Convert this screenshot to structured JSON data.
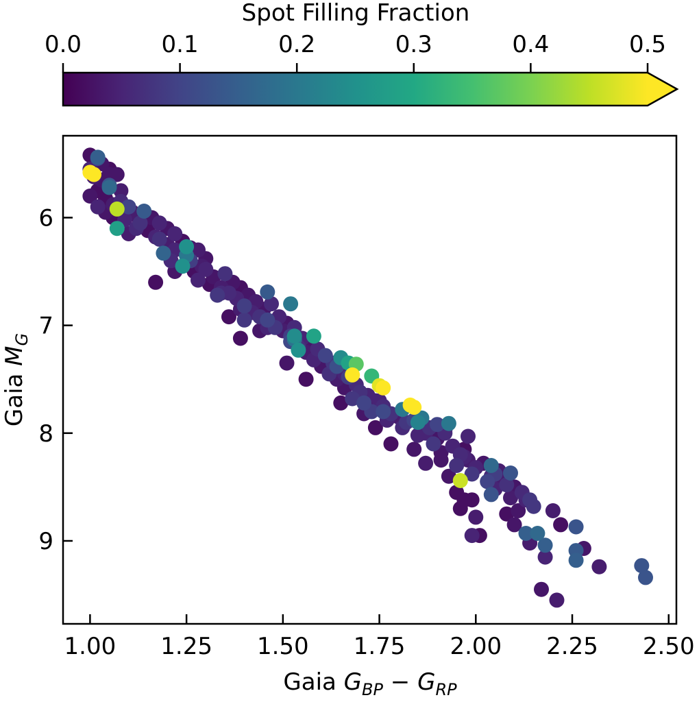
{
  "chart_data": {
    "type": "scatter",
    "xlabel": "Gaia G_BP − G_RP",
    "ylabel": "Gaia M_G",
    "xlim": [
      0.93,
      2.52
    ],
    "ylim": [
      9.77,
      5.24
    ],
    "xticks": [
      1.0,
      1.25,
      1.5,
      1.75,
      2.0,
      2.25,
      2.5
    ],
    "xtick_labels": [
      "1.00",
      "1.25",
      "1.50",
      "1.75",
      "2.00",
      "2.25",
      "2.50"
    ],
    "yticks": [
      6,
      7,
      8,
      9
    ],
    "ytick_labels": [
      "6",
      "7",
      "8",
      "9"
    ],
    "grid": false,
    "colorbar": {
      "label": "Spot Filling Fraction",
      "range": [
        0.0,
        0.5
      ],
      "ticks": [
        0.0,
        0.1,
        0.2,
        0.3,
        0.4,
        0.5
      ],
      "tick_labels": [
        "0.0",
        "0.1",
        "0.2",
        "0.3",
        "0.4",
        "0.5"
      ],
      "extend": "max",
      "colormap": "viridis"
    },
    "points": [
      [
        1.0,
        5.42,
        0.02
      ],
      [
        1.02,
        5.45,
        0.12
      ],
      [
        1.03,
        5.5,
        0.03
      ],
      [
        1.05,
        5.55,
        0.02
      ],
      [
        1.07,
        5.6,
        0.03
      ],
      [
        1.0,
        5.55,
        0.05
      ],
      [
        1.01,
        5.62,
        0.04
      ],
      [
        1.03,
        5.65,
        0.03
      ],
      [
        1.05,
        5.7,
        0.13
      ],
      [
        1.02,
        5.75,
        0.02
      ],
      [
        1.0,
        5.8,
        0.03
      ],
      [
        1.04,
        5.82,
        0.02
      ],
      [
        1.06,
        5.88,
        0.04
      ],
      [
        1.08,
        5.85,
        0.06
      ],
      [
        1.1,
        5.92,
        0.03
      ],
      [
        1.02,
        5.9,
        0.05
      ],
      [
        1.04,
        5.95,
        0.03
      ],
      [
        1.06,
        6.0,
        0.02
      ],
      [
        1.09,
        6.02,
        0.05
      ],
      [
        1.12,
        5.98,
        0.04
      ],
      [
        1.14,
        6.02,
        0.02
      ],
      [
        1.16,
        6.0,
        0.03
      ],
      [
        1.18,
        6.05,
        0.05
      ],
      [
        1.12,
        6.1,
        0.06
      ],
      [
        1.1,
        6.15,
        0.04
      ],
      [
        1.15,
        6.12,
        0.02
      ],
      [
        1.2,
        6.1,
        0.03
      ],
      [
        1.22,
        6.15,
        0.05
      ],
      [
        1.18,
        6.2,
        0.07
      ],
      [
        1.2,
        6.25,
        0.04
      ],
      [
        1.24,
        6.22,
        0.02
      ],
      [
        1.26,
        6.28,
        0.03
      ],
      [
        1.22,
        6.3,
        0.05
      ],
      [
        1.25,
        6.35,
        0.02
      ],
      [
        1.28,
        6.3,
        0.04
      ],
      [
        1.3,
        6.38,
        0.03
      ],
      [
        1.21,
        6.4,
        0.06
      ],
      [
        1.24,
        6.45,
        0.04
      ],
      [
        1.27,
        6.5,
        0.02
      ],
      [
        1.3,
        6.48,
        0.05
      ],
      [
        1.32,
        6.55,
        0.03
      ],
      [
        1.35,
        6.52,
        0.07
      ],
      [
        1.28,
        6.58,
        0.05
      ],
      [
        1.31,
        6.62,
        0.02
      ],
      [
        1.34,
        6.65,
        0.04
      ],
      [
        1.37,
        6.6,
        0.03
      ],
      [
        1.39,
        6.65,
        0.02
      ],
      [
        1.36,
        6.7,
        0.06
      ],
      [
        1.33,
        6.72,
        0.08
      ],
      [
        1.38,
        6.75,
        0.05
      ],
      [
        1.41,
        6.72,
        0.03
      ],
      [
        1.43,
        6.78,
        0.04
      ],
      [
        1.4,
        6.82,
        0.09
      ],
      [
        1.42,
        6.88,
        0.05
      ],
      [
        1.45,
        6.85,
        0.03
      ],
      [
        1.47,
        6.8,
        0.06
      ],
      [
        1.44,
        6.92,
        0.07
      ],
      [
        1.46,
        6.95,
        0.1
      ],
      [
        1.49,
        6.92,
        0.05
      ],
      [
        1.51,
        6.98,
        0.03
      ],
      [
        1.48,
        7.02,
        0.08
      ],
      [
        1.5,
        7.05,
        0.04
      ],
      [
        1.53,
        7.02,
        0.06
      ],
      [
        1.52,
        7.1,
        0.09
      ],
      [
        1.55,
        7.12,
        0.05
      ],
      [
        1.57,
        7.15,
        0.03
      ],
      [
        1.54,
        7.2,
        0.07
      ],
      [
        1.56,
        7.25,
        0.04
      ],
      [
        1.59,
        7.22,
        0.06
      ],
      [
        1.61,
        7.28,
        0.1
      ],
      [
        1.58,
        7.32,
        0.05
      ],
      [
        1.6,
        7.38,
        0.03
      ],
      [
        1.63,
        7.35,
        0.08
      ],
      [
        1.65,
        7.4,
        0.05
      ],
      [
        1.62,
        7.45,
        0.07
      ],
      [
        1.64,
        7.5,
        0.04
      ],
      [
        1.67,
        7.48,
        0.09
      ],
      [
        1.69,
        7.55,
        0.06
      ],
      [
        1.66,
        7.58,
        0.03
      ],
      [
        1.7,
        7.62,
        0.07
      ],
      [
        1.72,
        7.65,
        0.05
      ],
      [
        1.68,
        7.68,
        0.08
      ],
      [
        1.71,
        7.72,
        0.1
      ],
      [
        1.74,
        7.7,
        0.04
      ],
      [
        1.76,
        7.75,
        0.06
      ],
      [
        1.73,
        7.8,
        0.09
      ],
      [
        1.78,
        7.82,
        0.07
      ],
      [
        1.8,
        7.85,
        0.04
      ],
      [
        1.77,
        7.88,
        0.05
      ],
      [
        1.82,
        7.9,
        0.08
      ],
      [
        1.84,
        7.88,
        0.1
      ],
      [
        1.81,
        7.95,
        0.06
      ],
      [
        1.86,
        7.98,
        0.04
      ],
      [
        1.88,
        7.95,
        0.07
      ],
      [
        1.85,
        8.02,
        0.05
      ],
      [
        1.9,
        8.05,
        0.03
      ],
      [
        1.92,
        8.0,
        0.06
      ],
      [
        1.89,
        8.1,
        0.08
      ],
      [
        1.94,
        8.12,
        0.05
      ],
      [
        1.91,
        8.18,
        0.03
      ],
      [
        1.96,
        8.2,
        0.06
      ],
      [
        1.98,
        8.25,
        0.04
      ],
      [
        1.95,
        8.3,
        0.07
      ],
      [
        2.0,
        8.32,
        0.05
      ],
      [
        2.02,
        8.28,
        0.03
      ],
      [
        1.99,
        8.38,
        0.08
      ],
      [
        2.04,
        8.4,
        0.06
      ],
      [
        2.06,
        8.35,
        0.04
      ],
      [
        2.03,
        8.45,
        0.1
      ],
      [
        2.08,
        8.48,
        0.07
      ],
      [
        2.05,
        8.52,
        0.05
      ],
      [
        2.1,
        8.5,
        0.03
      ],
      [
        2.12,
        8.55,
        0.06
      ],
      [
        2.09,
        8.6,
        0.04
      ],
      [
        2.14,
        8.62,
        0.08
      ],
      [
        1.1,
        5.9,
        0.1
      ],
      [
        1.13,
        6.05,
        0.07
      ],
      [
        1.26,
        6.4,
        0.09
      ],
      [
        1.4,
        6.95,
        0.08
      ],
      [
        1.52,
        7.15,
        0.11
      ],
      [
        1.64,
        7.38,
        0.12
      ],
      [
        1.76,
        7.8,
        0.11
      ],
      [
        1.9,
        7.92,
        0.1
      ],
      [
        2.05,
        8.38,
        0.09
      ],
      [
        1.05,
        5.6,
        0.03
      ],
      [
        1.08,
        5.75,
        0.04
      ],
      [
        1.11,
        5.95,
        0.03
      ],
      [
        1.17,
        6.18,
        0.05
      ],
      [
        1.29,
        6.45,
        0.04
      ],
      [
        1.34,
        6.7,
        0.06
      ],
      [
        1.39,
        6.85,
        0.04
      ],
      [
        1.46,
        7.02,
        0.05
      ],
      [
        1.58,
        7.28,
        0.04
      ],
      [
        1.66,
        7.45,
        0.05
      ],
      [
        1.75,
        7.7,
        0.05
      ],
      [
        1.87,
        8.0,
        0.05
      ],
      [
        1.97,
        8.22,
        0.05
      ],
      [
        2.07,
        8.42,
        0.04
      ],
      [
        1.17,
        6.6,
        0.02
      ],
      [
        1.22,
        6.5,
        0.03
      ],
      [
        1.36,
        6.92,
        0.02
      ],
      [
        1.44,
        7.05,
        0.03
      ],
      [
        1.39,
        7.12,
        0.02
      ],
      [
        1.56,
        7.5,
        0.02
      ],
      [
        1.51,
        7.35,
        0.03
      ],
      [
        1.65,
        7.72,
        0.02
      ],
      [
        1.71,
        7.82,
        0.03
      ],
      [
        1.74,
        7.95,
        0.02
      ],
      [
        1.78,
        8.1,
        0.02
      ],
      [
        1.84,
        8.15,
        0.03
      ],
      [
        1.87,
        8.28,
        0.04
      ],
      [
        1.93,
        8.4,
        0.03
      ],
      [
        1.95,
        8.55,
        0.02
      ],
      [
        1.96,
        8.7,
        0.02
      ],
      [
        1.99,
        8.62,
        0.02
      ],
      [
        2.0,
        8.78,
        0.04
      ],
      [
        2.01,
        8.95,
        0.02
      ],
      [
        2.11,
        8.72,
        0.03
      ],
      [
        2.13,
        8.62,
        0.05
      ],
      [
        2.15,
        8.68,
        0.08
      ],
      [
        2.2,
        8.72,
        0.04
      ],
      [
        2.22,
        8.85,
        0.02
      ],
      [
        2.28,
        9.07,
        0.03
      ],
      [
        2.32,
        9.24,
        0.04
      ],
      [
        2.17,
        9.45,
        0.03
      ],
      [
        2.21,
        9.55,
        0.04
      ],
      [
        2.18,
        9.15,
        0.05
      ],
      [
        2.1,
        8.85,
        0.03
      ],
      [
        2.08,
        8.75,
        0.02
      ],
      [
        2.14,
        9.02,
        0.04
      ],
      [
        1.91,
        8.25,
        0.03
      ],
      [
        1.99,
        8.95,
        0.05
      ],
      [
        1.97,
        8.15,
        0.02
      ],
      [
        1.97,
        8.62,
        0.02
      ],
      [
        1.92,
        7.97,
        0.03
      ],
      [
        1.98,
        8.03,
        0.05
      ],
      [
        1.02,
        5.44,
        0.15
      ],
      [
        1.05,
        5.72,
        0.17
      ],
      [
        1.25,
        6.35,
        0.2
      ],
      [
        1.24,
        6.45,
        0.25
      ],
      [
        1.25,
        6.27,
        0.25
      ],
      [
        1.46,
        6.69,
        0.14
      ],
      [
        1.52,
        6.8,
        0.2
      ],
      [
        1.53,
        7.1,
        0.24
      ],
      [
        1.58,
        7.1,
        0.29
      ],
      [
        1.54,
        7.23,
        0.25
      ],
      [
        1.65,
        7.3,
        0.24
      ],
      [
        1.67,
        7.35,
        0.29
      ],
      [
        1.69,
        7.36,
        0.37
      ],
      [
        1.73,
        7.47,
        0.33
      ],
      [
        1.68,
        7.46,
        0.5
      ],
      [
        1.76,
        7.58,
        0.5
      ],
      [
        1.75,
        7.56,
        0.48
      ],
      [
        1.83,
        7.74,
        0.5
      ],
      [
        1.84,
        7.76,
        0.5
      ],
      [
        1.81,
        7.78,
        0.2
      ],
      [
        1.85,
        7.9,
        0.22
      ],
      [
        1.86,
        7.86,
        0.2
      ],
      [
        1.93,
        7.91,
        0.2
      ],
      [
        1.96,
        8.44,
        0.46
      ],
      [
        2.04,
        8.57,
        0.13
      ],
      [
        2.09,
        8.37,
        0.13
      ],
      [
        2.13,
        8.93,
        0.15
      ],
      [
        2.16,
        8.93,
        0.17
      ],
      [
        2.18,
        9.04,
        0.15
      ],
      [
        2.26,
        8.87,
        0.13
      ],
      [
        2.26,
        9.18,
        0.15
      ],
      [
        2.26,
        9.09,
        0.14
      ],
      [
        2.43,
        9.23,
        0.13
      ],
      [
        2.44,
        9.34,
        0.13
      ],
      [
        2.04,
        8.3,
        0.17
      ],
      [
        1.07,
        6.1,
        0.28
      ],
      [
        1.07,
        5.92,
        0.45
      ],
      [
        1.0,
        5.58,
        0.5
      ],
      [
        1.01,
        5.6,
        0.5
      ],
      [
        1.19,
        6.33,
        0.16
      ],
      [
        1.14,
        5.94,
        0.14
      ],
      [
        1.53,
        7.13,
        0.19
      ]
    ]
  }
}
